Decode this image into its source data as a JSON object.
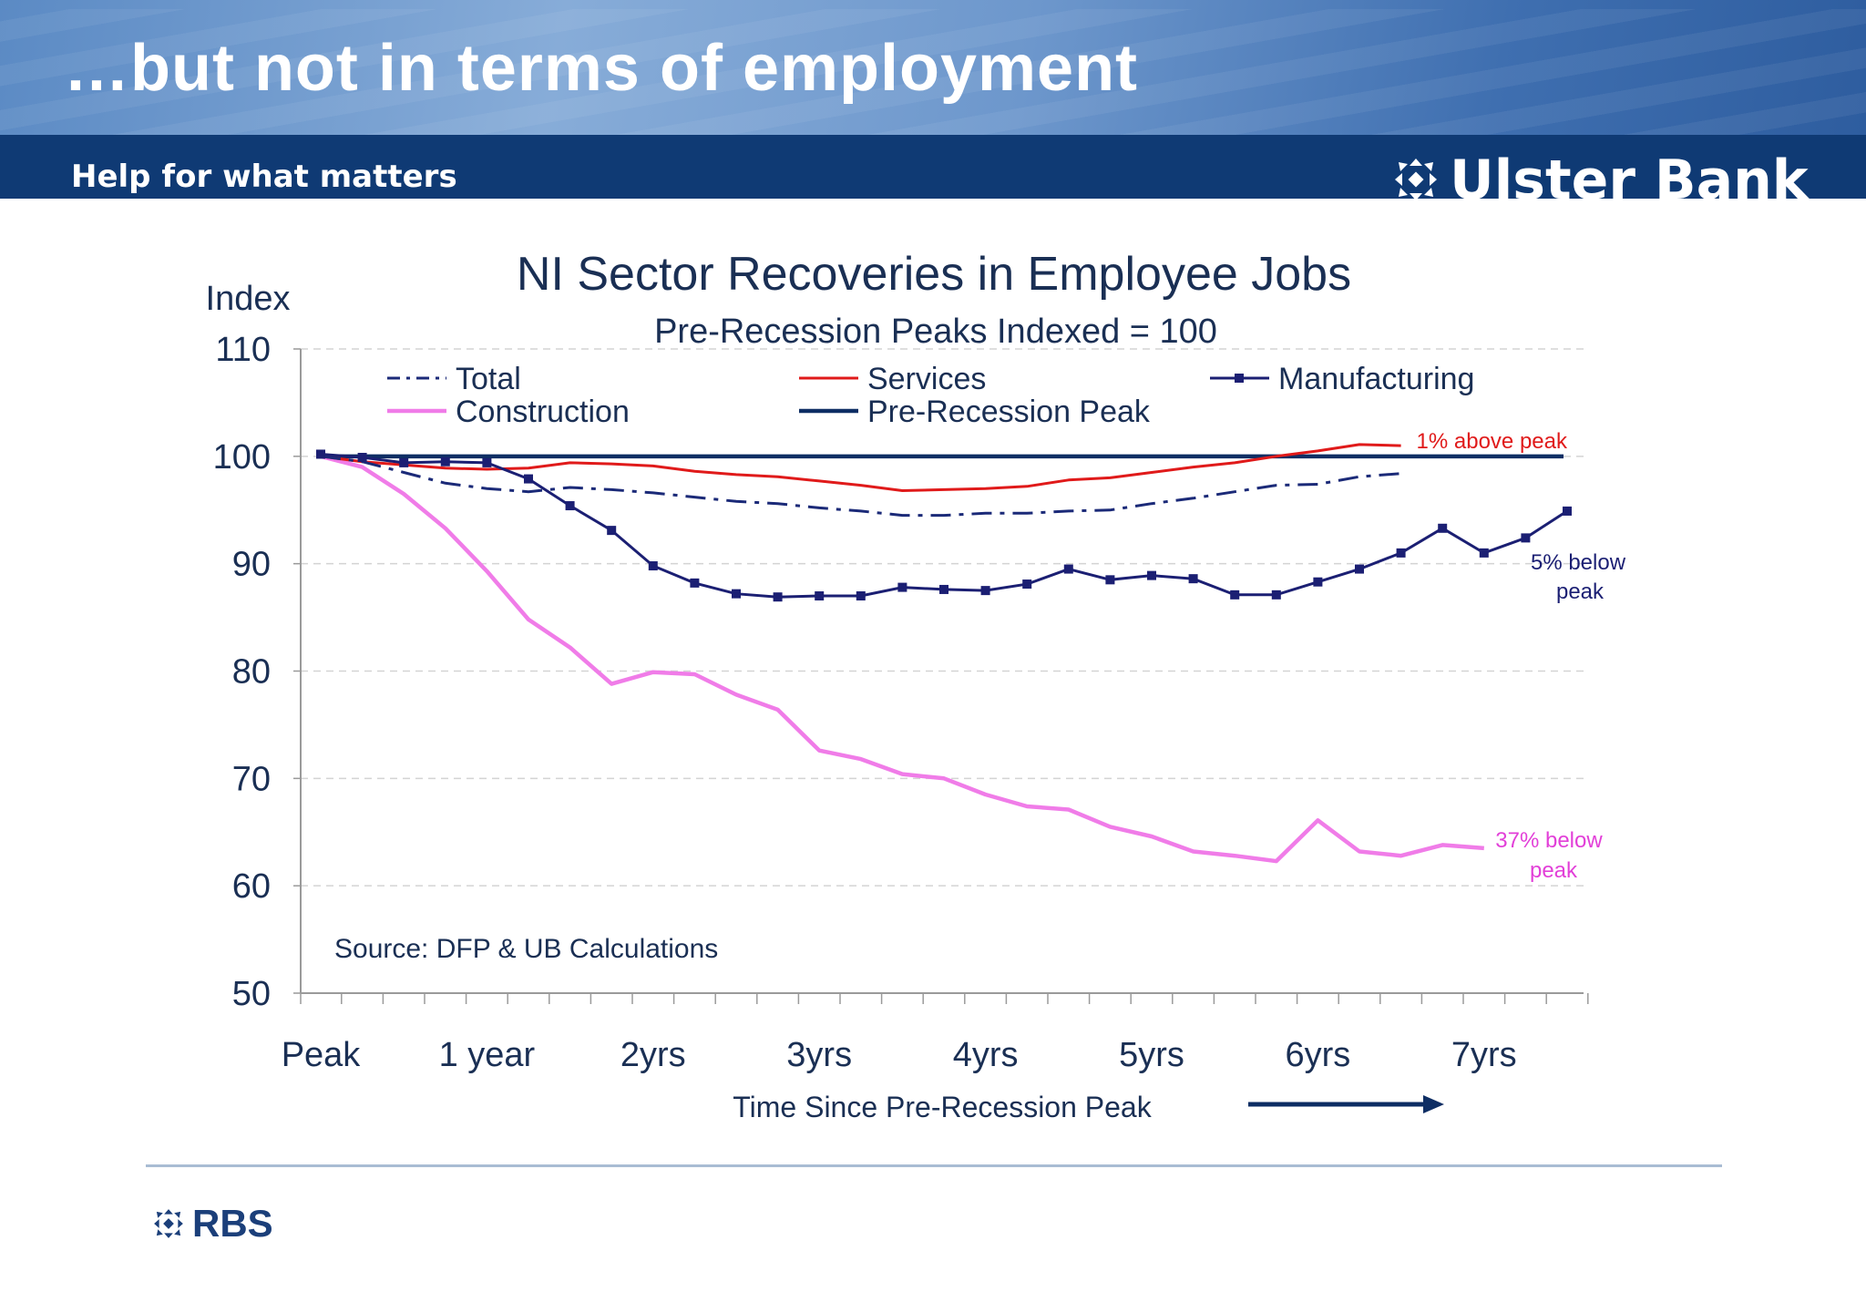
{
  "header": {
    "slide_title": "…but not in terms of employment",
    "tagline": "Help for what matters",
    "bank_name": "Ulster Bank",
    "logo_icon": "daleks-cross-icon"
  },
  "footer": {
    "rbs_name": "RBS",
    "logo_icon": "daleks-cross-icon"
  },
  "colors": {
    "total": "#1b2a78",
    "services": "#e01a1a",
    "manufacturing": "#1b1f73",
    "construction": "#f07ce8",
    "peak_line": "#0e2e64",
    "axis_text": "#1a2f54"
  },
  "chart_data": {
    "type": "line",
    "title": "NI Sector Recoveries in Employee Jobs",
    "subtitle": "Pre-Recession Peaks Indexed = 100",
    "ylabel": "Index",
    "xlabel": "Time Since Pre-Recession Peak",
    "source": "Source: DFP & UB Calculations",
    "ylim": [
      50,
      110
    ],
    "yticks": [
      50,
      60,
      70,
      80,
      90,
      100,
      110
    ],
    "x_period": "quarters since peak",
    "x_range": [
      0,
      30
    ],
    "xticks": [
      {
        "quarter": 0,
        "label": "Peak"
      },
      {
        "quarter": 4,
        "label": "1 year"
      },
      {
        "quarter": 8,
        "label": "2yrs"
      },
      {
        "quarter": 12,
        "label": "3yrs"
      },
      {
        "quarter": 16,
        "label": "4yrs"
      },
      {
        "quarter": 20,
        "label": "5yrs"
      },
      {
        "quarter": 24,
        "label": "6yrs"
      },
      {
        "quarter": 28,
        "label": "7yrs"
      }
    ],
    "grid": true,
    "legend_position": "top",
    "series": [
      {
        "name": "Total",
        "style": "dash-dot",
        "values": [
          100,
          99.5,
          98.5,
          97.5,
          97,
          96.7,
          97.1,
          96.9,
          96.6,
          96.2,
          95.8,
          95.6,
          95.2,
          94.9,
          94.5,
          94.5,
          94.7,
          94.7,
          94.9,
          95.0,
          95.6,
          96.1,
          96.7,
          97.3,
          97.4,
          98.1,
          98.4
        ]
      },
      {
        "name": "Services",
        "style": "solid",
        "values": [
          100,
          99.5,
          99.2,
          98.9,
          98.8,
          98.9,
          99.4,
          99.3,
          99.1,
          98.6,
          98.3,
          98.1,
          97.7,
          97.3,
          96.8,
          96.9,
          97.0,
          97.2,
          97.8,
          98.0,
          98.5,
          99.0,
          99.4,
          100.0,
          100.5,
          101.1,
          101.0
        ]
      },
      {
        "name": "Manufacturing",
        "style": "solid-markers",
        "values": [
          100.2,
          99.9,
          99.4,
          99.5,
          99.4,
          97.9,
          95.4,
          93.1,
          89.8,
          88.2,
          87.2,
          86.9,
          87.0,
          87.0,
          87.8,
          87.6,
          87.5,
          88.1,
          89.5,
          88.5,
          88.9,
          88.6,
          87.1,
          87.1,
          88.3,
          89.5,
          91.0,
          93.3,
          91.0,
          92.4,
          94.9
        ]
      },
      {
        "name": "Construction",
        "style": "solid",
        "values": [
          100,
          99.0,
          96.5,
          93.3,
          89.3,
          84.8,
          82.2,
          78.8,
          79.9,
          79.7,
          77.8,
          76.4,
          72.6,
          71.8,
          70.4,
          70.0,
          68.5,
          67.4,
          67.1,
          65.5,
          64.6,
          63.2,
          62.8,
          62.3,
          66.1,
          63.2,
          62.8,
          63.8,
          63.5
        ]
      },
      {
        "name": "Pre-Recession Peak",
        "style": "solid-thick",
        "values": [
          100,
          100
        ]
      }
    ],
    "annotations": [
      {
        "text": "1% above peak",
        "series": "Services"
      },
      {
        "line1": "5% below",
        "line2": "peak",
        "series": "Manufacturing"
      },
      {
        "line1": "37% below",
        "line2": "peak",
        "series": "Construction"
      }
    ]
  }
}
